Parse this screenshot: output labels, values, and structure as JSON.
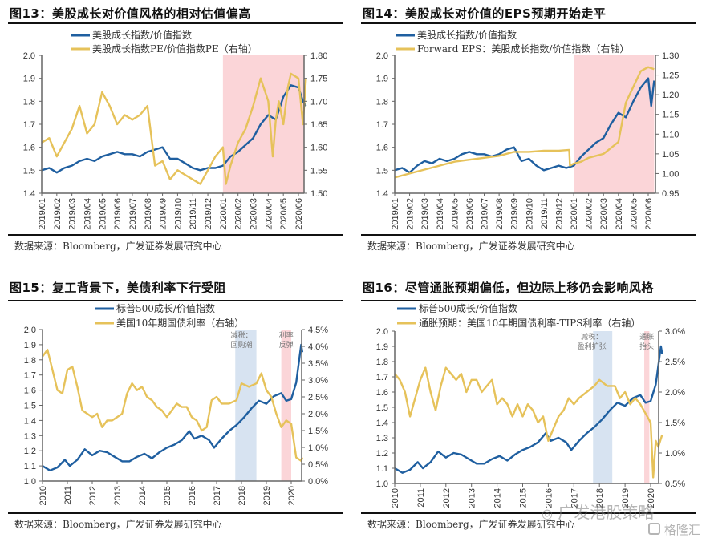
{
  "source_text": "数据来源：Bloomberg，广发证券发展研究中心",
  "watermark": {
    "text1": "广发港股策略",
    "text2": "格隆汇"
  },
  "colors": {
    "blue": "#1f5fa0",
    "gold": "#e6c25a",
    "orange": "#e8a23a",
    "pink": "#fbd3d6",
    "lightblue": "#d3e0f0"
  },
  "chart_data": [
    {
      "type": "line",
      "title": "图13：美股成长对价值风格的相对估值偏高",
      "legend_position": "top",
      "x_tick_labels": [
        "2019/01",
        "2019/02",
        "2019/03",
        "2019/04",
        "2019/05",
        "2019/06",
        "2019/07",
        "2019/08",
        "2019/09",
        "2019/10",
        "2019/11",
        "2019/12",
        "2020/01",
        "2020/02",
        "2020/03",
        "2020/04",
        "2020/05",
        "2020/06"
      ],
      "y_left": {
        "ylim": [
          1.4,
          2.0
        ],
        "ticks": [
          "1.4",
          "1.5",
          "1.6",
          "1.7",
          "1.8",
          "1.9",
          "2.0"
        ]
      },
      "y_right": {
        "ylim": [
          1.5,
          1.8
        ],
        "ticks": [
          "1.50",
          "1.55",
          "1.60",
          "1.65",
          "1.70",
          "1.75",
          "1.80"
        ]
      },
      "shade": [
        {
          "from": 12,
          "to": 17.5,
          "color": "pink"
        }
      ],
      "annotations": [],
      "series": [
        {
          "name": "美股成长指数/价值指数",
          "axis": "left",
          "color": "blue",
          "x": [
            0,
            0.5,
            1,
            1.5,
            2,
            2.5,
            3,
            3.5,
            4,
            4.5,
            5,
            5.5,
            6,
            6.5,
            7,
            7.5,
            8,
            8.5,
            9,
            9.5,
            10,
            10.5,
            11,
            11.5,
            12,
            12.5,
            13,
            13.5,
            14,
            14.5,
            15,
            15.5,
            16,
            16.5,
            17,
            17.3,
            17.5
          ],
          "values": [
            1.5,
            1.51,
            1.49,
            1.51,
            1.52,
            1.54,
            1.55,
            1.54,
            1.56,
            1.57,
            1.58,
            1.57,
            1.57,
            1.56,
            1.58,
            1.59,
            1.6,
            1.55,
            1.55,
            1.53,
            1.51,
            1.5,
            1.51,
            1.51,
            1.52,
            1.56,
            1.58,
            1.61,
            1.64,
            1.7,
            1.74,
            1.72,
            1.82,
            1.87,
            1.86,
            1.8,
            1.78
          ]
        },
        {
          "name": "美股成长指数PE/价值指数PE（右轴）",
          "axis": "right",
          "color": "gold",
          "x": [
            0,
            0.5,
            1,
            1.5,
            2,
            2.5,
            3,
            3.5,
            4,
            4.5,
            5,
            5.5,
            6,
            6.5,
            7,
            7.5,
            8,
            8.5,
            9,
            9.5,
            10,
            10.5,
            11,
            11.5,
            12,
            12.2,
            12.5,
            13,
            13.5,
            14,
            14.5,
            15,
            15.3,
            15.5,
            15.7,
            16,
            16.3,
            16.5,
            17,
            17.3,
            17.5
          ],
          "values": [
            1.61,
            1.62,
            1.58,
            1.61,
            1.64,
            1.69,
            1.63,
            1.65,
            1.72,
            1.69,
            1.65,
            1.67,
            1.66,
            1.67,
            1.69,
            1.56,
            1.57,
            1.53,
            1.55,
            1.54,
            1.53,
            1.52,
            1.55,
            1.58,
            1.6,
            1.52,
            1.56,
            1.61,
            1.64,
            1.69,
            1.75,
            1.7,
            1.58,
            1.66,
            1.7,
            1.65,
            1.73,
            1.76,
            1.75,
            1.65,
            1.75
          ]
        }
      ]
    },
    {
      "type": "line",
      "title": "图14：美股成长对价值的EPS预期开始走平",
      "legend_position": "top",
      "x_tick_labels": [
        "2019/01",
        "2019/02",
        "2019/03",
        "2019/04",
        "2019/05",
        "2019/06",
        "2019/07",
        "2019/08",
        "2019/09",
        "2019/10",
        "2019/11",
        "2019/12",
        "2020/01",
        "2020/02",
        "2020/03",
        "2020/04",
        "2020/05",
        "2020/06"
      ],
      "y_left": {
        "ylim": [
          1.4,
          2.0
        ],
        "ticks": [
          "1.4",
          "1.5",
          "1.6",
          "1.7",
          "1.8",
          "1.9",
          "2.0"
        ]
      },
      "y_right": {
        "ylim": [
          0.95,
          1.3
        ],
        "ticks": [
          "0.95",
          "1.00",
          "1.05",
          "1.10",
          "1.15",
          "1.20",
          "1.25",
          "1.30"
        ]
      },
      "shade": [
        {
          "from": 12,
          "to": 17.4,
          "color": "pink"
        }
      ],
      "annotations": [],
      "series": [
        {
          "name": "美股成长指数/价值指数",
          "axis": "left",
          "color": "blue",
          "x": [
            0,
            0.5,
            1,
            1.5,
            2,
            2.5,
            3,
            3.5,
            4,
            4.5,
            5,
            5.5,
            6,
            6.5,
            7,
            7.5,
            8,
            8.5,
            9,
            9.5,
            10,
            10.5,
            11,
            11.5,
            12,
            12.5,
            13,
            13.5,
            14,
            14.5,
            15,
            15.5,
            16,
            16.5,
            17,
            17.2,
            17.4
          ],
          "values": [
            1.5,
            1.51,
            1.49,
            1.52,
            1.54,
            1.53,
            1.55,
            1.54,
            1.55,
            1.57,
            1.58,
            1.57,
            1.57,
            1.56,
            1.57,
            1.59,
            1.6,
            1.54,
            1.55,
            1.52,
            1.5,
            1.51,
            1.52,
            1.51,
            1.52,
            1.56,
            1.59,
            1.62,
            1.64,
            1.7,
            1.75,
            1.73,
            1.8,
            1.86,
            1.9,
            1.78,
            1.89
          ]
        },
        {
          "name": "Forward EPS：美股成长指数/价值指数（右轴）",
          "axis": "right",
          "color": "gold",
          "x": [
            0,
            1,
            2,
            3,
            4,
            5,
            6,
            7,
            8,
            9,
            10,
            11,
            11.7,
            11.75,
            12,
            12.5,
            13,
            14,
            15,
            15.5,
            16,
            16.5,
            17,
            17.4
          ],
          "values": [
            0.99,
            1.0,
            1.01,
            1.02,
            1.03,
            1.035,
            1.04,
            1.045,
            1.055,
            1.055,
            1.058,
            1.058,
            1.06,
            1.02,
            1.025,
            1.03,
            1.04,
            1.05,
            1.08,
            1.18,
            1.22,
            1.26,
            1.27,
            1.265
          ]
        }
      ]
    },
    {
      "type": "line",
      "title": "图15：复工背景下，美债利率下行受阻",
      "legend_position": "top",
      "x_tick_labels": [
        "2010",
        "2011",
        "2012",
        "2013",
        "2014",
        "2015",
        "2016",
        "2017",
        "2018",
        "2019",
        "2020"
      ],
      "y_left": {
        "ylim": [
          1.0,
          2.0
        ],
        "ticks": [
          "1.0",
          "1.1",
          "1.2",
          "1.3",
          "1.4",
          "1.5",
          "1.6",
          "1.7",
          "1.8",
          "1.9",
          "2.0"
        ]
      },
      "y_right": {
        "ylim": [
          0.0,
          4.5
        ],
        "ticks": [
          "0.0%",
          "0.5%",
          "1.0%",
          "1.5%",
          "2.0%",
          "2.5%",
          "3.0%",
          "3.5%",
          "4.0%",
          "4.5%"
        ]
      },
      "shade": [
        {
          "from": 7.75,
          "to": 8.6,
          "color": "lightblue"
        },
        {
          "from": 9.6,
          "to": 10.0,
          "color": "pink"
        }
      ],
      "annotations": [
        {
          "lines": [
            "减税：",
            "回购潮"
          ],
          "at": 8.0
        },
        {
          "lines": [
            "利率",
            "反弹"
          ],
          "at": 9.8
        }
      ],
      "series": [
        {
          "name": "标普500成长/价值指数",
          "axis": "left",
          "color": "blue",
          "x": [
            0,
            0.3,
            0.6,
            0.9,
            1.1,
            1.4,
            1.7,
            2.0,
            2.3,
            2.6,
            2.9,
            3.2,
            3.5,
            3.8,
            4.1,
            4.4,
            4.7,
            5.0,
            5.3,
            5.6,
            5.9,
            6.1,
            6.4,
            6.7,
            6.9,
            7.2,
            7.5,
            7.8,
            8.1,
            8.4,
            8.7,
            9.0,
            9.3,
            9.6,
            9.8,
            10.0,
            10.2,
            10.4,
            10.45
          ],
          "values": [
            1.1,
            1.07,
            1.09,
            1.14,
            1.1,
            1.14,
            1.21,
            1.17,
            1.2,
            1.19,
            1.16,
            1.13,
            1.13,
            1.16,
            1.18,
            1.15,
            1.19,
            1.22,
            1.24,
            1.27,
            1.33,
            1.28,
            1.3,
            1.27,
            1.22,
            1.28,
            1.33,
            1.37,
            1.42,
            1.48,
            1.53,
            1.51,
            1.56,
            1.58,
            1.53,
            1.54,
            1.65,
            1.9,
            1.85
          ]
        },
        {
          "name": "美国10年期国债利率（右轴）",
          "axis": "right",
          "color": "gold",
          "x": [
            0,
            0.2,
            0.4,
            0.6,
            0.8,
            1.0,
            1.2,
            1.4,
            1.6,
            1.8,
            2.0,
            2.2,
            2.4,
            2.6,
            2.8,
            3.0,
            3.2,
            3.4,
            3.6,
            3.8,
            4.0,
            4.2,
            4.4,
            4.6,
            4.8,
            5.0,
            5.2,
            5.4,
            5.6,
            5.8,
            6.0,
            6.2,
            6.4,
            6.6,
            6.8,
            7.0,
            7.2,
            7.5,
            7.8,
            8.0,
            8.3,
            8.6,
            8.8,
            9.0,
            9.2,
            9.4,
            9.6,
            9.8,
            10.0,
            10.2,
            10.4,
            10.45
          ],
          "values": [
            3.7,
            3.9,
            3.3,
            2.7,
            2.6,
            3.3,
            3.4,
            2.8,
            2.1,
            2.0,
            1.9,
            2.0,
            1.6,
            1.8,
            1.8,
            1.9,
            2.0,
            2.6,
            2.9,
            2.7,
            2.8,
            2.5,
            2.4,
            2.2,
            2.1,
            1.9,
            2.1,
            2.3,
            2.2,
            2.2,
            1.9,
            1.8,
            1.5,
            1.6,
            2.4,
            2.5,
            2.3,
            2.3,
            2.4,
            2.9,
            2.8,
            2.9,
            3.2,
            2.7,
            2.5,
            2.0,
            1.6,
            1.8,
            1.7,
            0.7,
            0.6,
            0.7
          ]
        }
      ]
    },
    {
      "type": "line",
      "title": "图16：尽管通胀预期偏低，但边际上移仍会影响风格",
      "legend_position": "top",
      "x_tick_labels": [
        "2010",
        "2011",
        "2012",
        "2013",
        "2014",
        "2015",
        "2016",
        "2017",
        "2018",
        "2019",
        "2020"
      ],
      "y_left": {
        "ylim": [
          1.0,
          2.0
        ],
        "ticks": [
          "1.0",
          "1.1",
          "1.2",
          "1.3",
          "1.4",
          "1.5",
          "1.6",
          "1.7",
          "1.8",
          "1.9",
          "2.0"
        ]
      },
      "y_right": {
        "ylim": [
          0.5,
          3.0
        ],
        "ticks": [
          "0.5%",
          "1.0%",
          "1.5%",
          "2.0%",
          "2.5%",
          "3.0%"
        ]
      },
      "shade": [
        {
          "from": 7.75,
          "to": 8.5,
          "color": "lightblue"
        },
        {
          "from": 9.75,
          "to": 9.95,
          "color": "pink"
        }
      ],
      "annotations": [
        {
          "lines": [
            "减税：",
            "盈利扩张"
          ],
          "at": 7.7
        },
        {
          "lines": [
            "通胀",
            "抬头"
          ],
          "at": 9.85
        }
      ],
      "series": [
        {
          "name": "标普500成长/价值指数",
          "axis": "left",
          "color": "blue",
          "x": [
            0,
            0.3,
            0.6,
            0.9,
            1.1,
            1.4,
            1.7,
            2.0,
            2.3,
            2.6,
            2.9,
            3.2,
            3.5,
            3.8,
            4.1,
            4.4,
            4.7,
            5.0,
            5.3,
            5.6,
            5.9,
            6.1,
            6.4,
            6.7,
            6.9,
            7.2,
            7.5,
            7.8,
            8.1,
            8.4,
            8.7,
            9.0,
            9.3,
            9.6,
            9.8,
            10.0,
            10.2,
            10.4,
            10.45
          ],
          "values": [
            1.1,
            1.07,
            1.09,
            1.14,
            1.1,
            1.14,
            1.21,
            1.17,
            1.2,
            1.19,
            1.16,
            1.13,
            1.13,
            1.16,
            1.18,
            1.15,
            1.19,
            1.22,
            1.24,
            1.27,
            1.33,
            1.28,
            1.3,
            1.27,
            1.22,
            1.28,
            1.33,
            1.37,
            1.42,
            1.48,
            1.53,
            1.51,
            1.56,
            1.58,
            1.53,
            1.54,
            1.65,
            1.9,
            1.85
          ]
        },
        {
          "name": "通胀预期：美国10年期国债利率-TIPS利率（右轴）",
          "axis": "right",
          "color": "gold",
          "x": [
            0,
            0.2,
            0.4,
            0.6,
            0.8,
            1.0,
            1.2,
            1.4,
            1.6,
            1.8,
            2.0,
            2.2,
            2.4,
            2.6,
            2.8,
            3.0,
            3.2,
            3.4,
            3.6,
            3.8,
            4.0,
            4.2,
            4.4,
            4.6,
            4.8,
            5.0,
            5.2,
            5.4,
            5.6,
            5.8,
            6.0,
            6.2,
            6.4,
            6.6,
            6.8,
            7.0,
            7.2,
            7.5,
            7.8,
            8.0,
            8.3,
            8.6,
            8.8,
            9.0,
            9.2,
            9.4,
            9.6,
            9.8,
            10.0,
            10.1,
            10.2,
            10.3,
            10.45
          ],
          "values": [
            2.3,
            2.2,
            2.0,
            1.6,
            1.9,
            2.2,
            2.4,
            2.0,
            1.7,
            2.1,
            2.4,
            2.3,
            2.2,
            2.3,
            2.0,
            2.2,
            2.2,
            2.0,
            2.1,
            2.2,
            1.8,
            1.9,
            1.8,
            1.6,
            1.8,
            1.6,
            1.8,
            1.7,
            1.5,
            1.6,
            1.2,
            1.4,
            1.6,
            1.7,
            1.9,
            1.8,
            1.9,
            2.0,
            2.1,
            2.2,
            2.1,
            2.1,
            1.9,
            2.0,
            1.8,
            1.9,
            1.8,
            1.65,
            1.5,
            0.6,
            1.2,
            1.1,
            1.3
          ]
        }
      ]
    }
  ]
}
